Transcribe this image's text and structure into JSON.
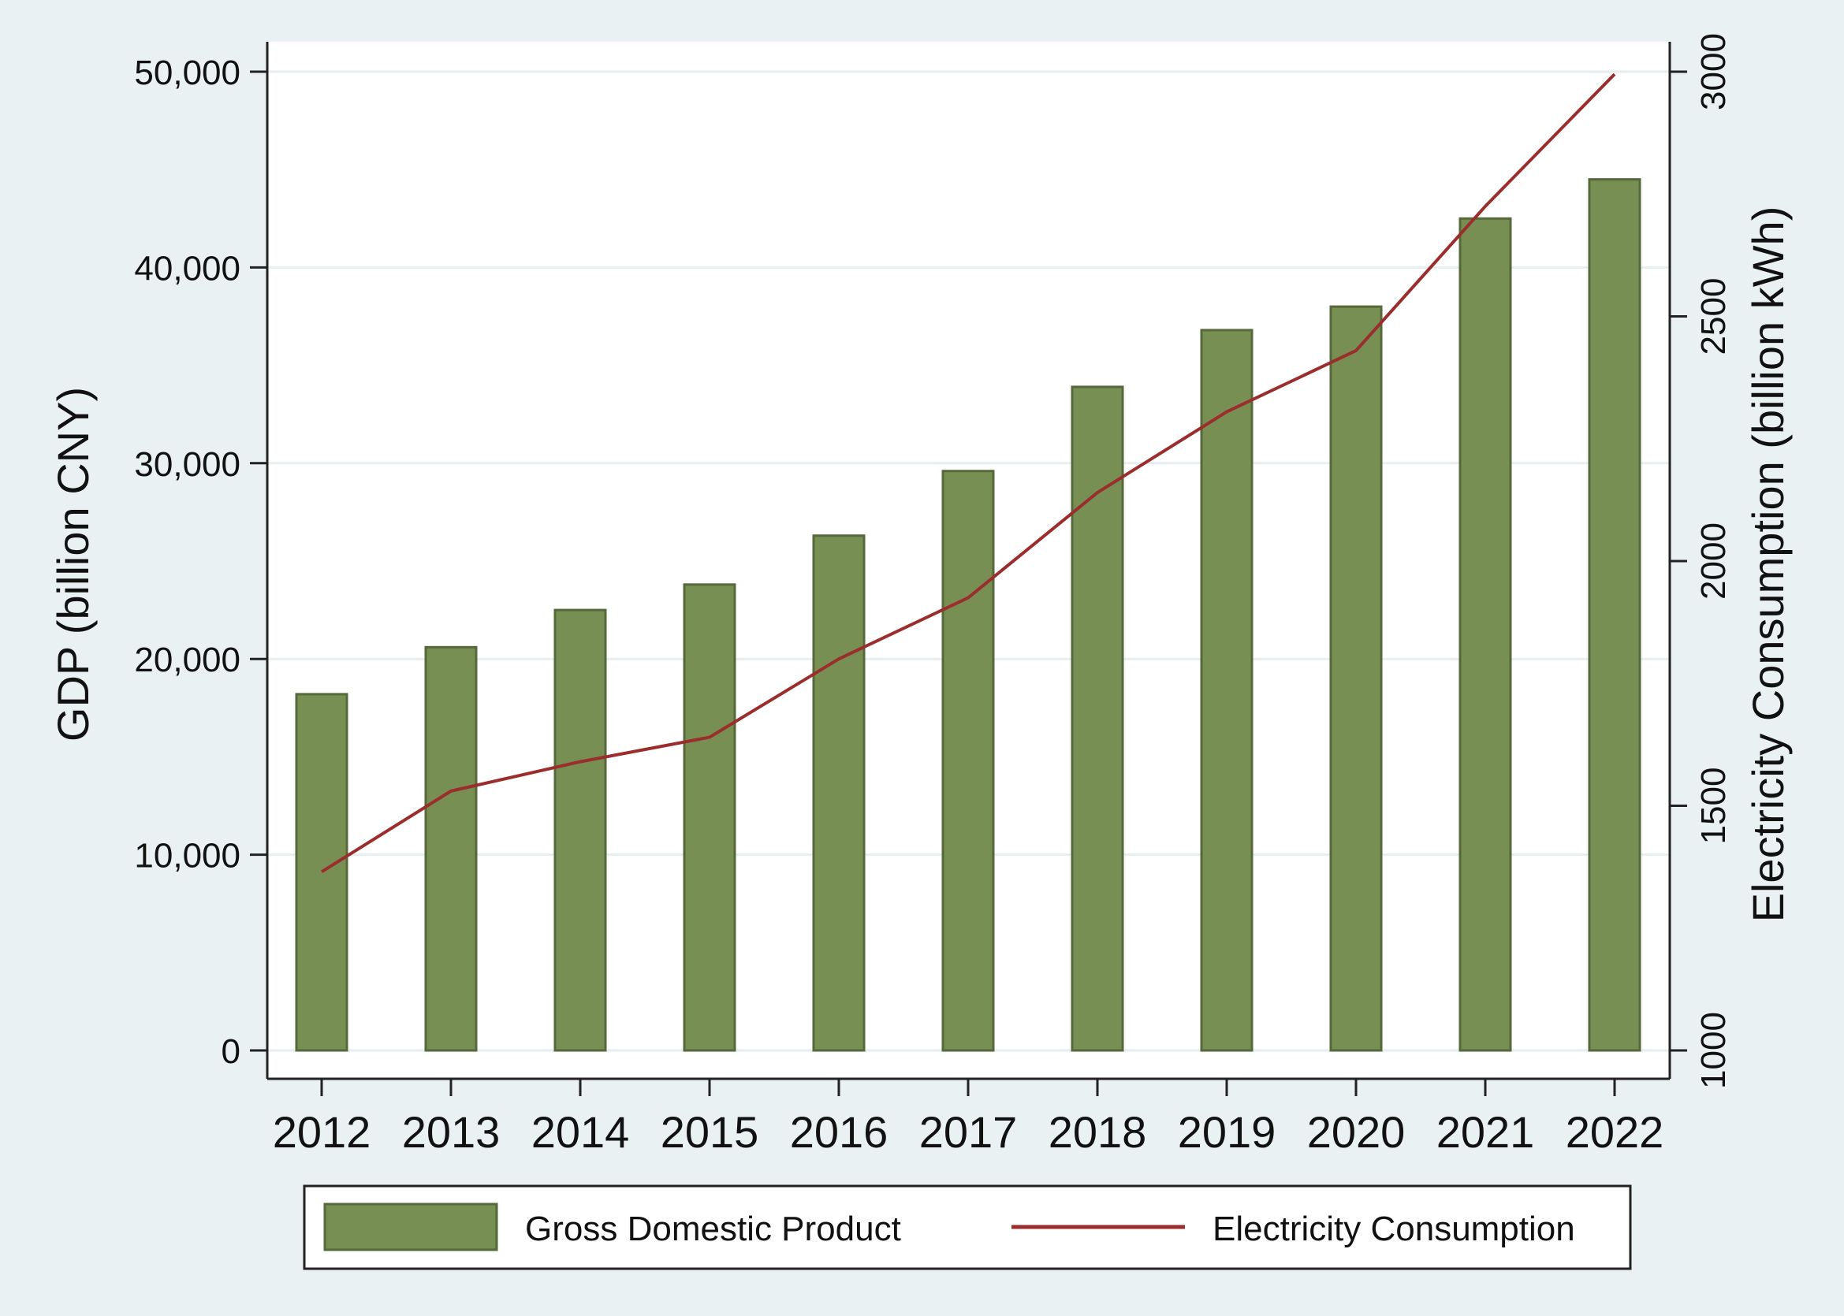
{
  "chart_data": {
    "type": "bar",
    "title": "",
    "categories": [
      "2012",
      "2013",
      "2014",
      "2015",
      "2016",
      "2017",
      "2018",
      "2019",
      "2020",
      "2021",
      "2022"
    ],
    "series": [
      {
        "name": "Gross Domestic Product",
        "type": "bar",
        "axis": "left",
        "values": [
          18200,
          20600,
          22500,
          23800,
          26300,
          29600,
          33900,
          36800,
          38000,
          42500,
          44500
        ]
      },
      {
        "name": "Electricity Consumption",
        "type": "line",
        "axis": "right",
        "values": [
          1365,
          1530,
          1590,
          1640,
          1800,
          1925,
          2140,
          2305,
          2430,
          2725,
          2995
        ]
      }
    ],
    "xlabel": "",
    "ylabel": "GDP (billion CNY)",
    "y2label": "Electricity Consumption (billion kWh)",
    "ylim": [
      0,
      50000
    ],
    "y2lim": [
      1000,
      3000
    ],
    "yticks": [
      "0",
      "10,000",
      "20,000",
      "30,000",
      "40,000",
      "50,000"
    ],
    "y2ticks": [
      "1000",
      "1500",
      "2000",
      "2500",
      "3000"
    ],
    "grid": true,
    "legend_position": "bottom"
  },
  "colors": {
    "bar_fill": "#778f53",
    "bar_edge": "#55693a",
    "line": "#9b2d2d",
    "background": "#eaf1f3",
    "plot_bg": "#ffffff",
    "grid": "#e6eef0",
    "axis": "#222222"
  }
}
